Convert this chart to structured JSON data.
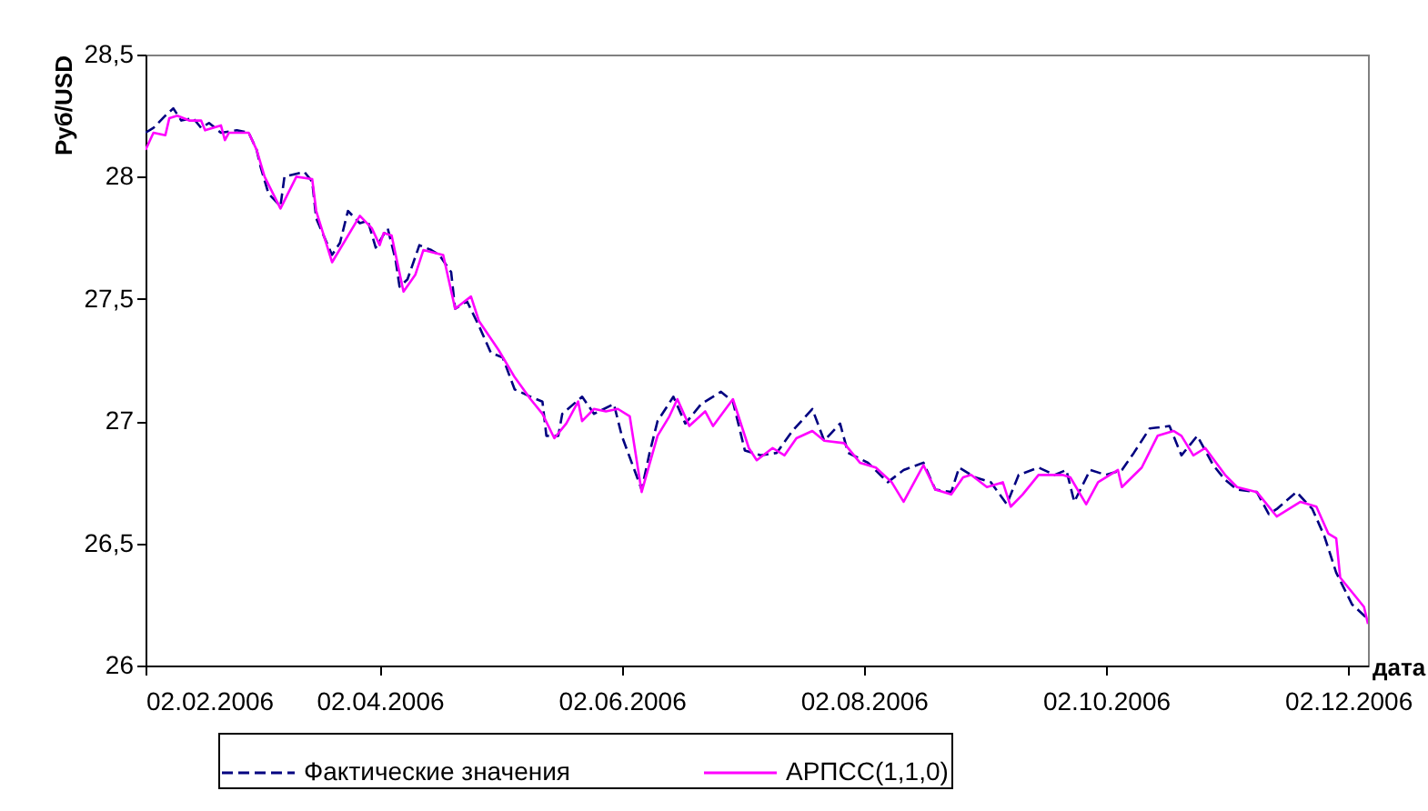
{
  "chart_data": {
    "type": "line",
    "ylabel": "Руб/USD",
    "xlabel": "дата",
    "xlim": [
      "2006-02-02",
      "2006-12-07"
    ],
    "xticks": [
      {
        "value": "2006-02-02",
        "label": "02.02.2006"
      },
      {
        "value": "2006-04-02",
        "label": "02.04.2006"
      },
      {
        "value": "2006-06-02",
        "label": "02.06.2006"
      },
      {
        "value": "2006-08-02",
        "label": "02.08.2006"
      },
      {
        "value": "2006-10-02",
        "label": "02.10.2006"
      },
      {
        "value": "2006-12-02",
        "label": "02.12.2006"
      }
    ],
    "ylim": [
      26,
      28.5
    ],
    "yticks": [
      26,
      {
        "value": 26.5,
        "label": "26,5"
      },
      27,
      {
        "value": 27.5,
        "label": "27,5"
      },
      28,
      {
        "value": 28.5,
        "label": "28,5"
      }
    ],
    "grid": false,
    "legend": "bottom",
    "series": [
      {
        "name": "Фактические значения",
        "color": "#000080",
        "line_style": "dashed",
        "x": [
          "2006-02-02",
          "2006-02-04",
          "2006-02-07",
          "2006-02-09",
          "2006-02-11",
          "2006-02-14",
          "2006-02-16",
          "2006-02-18",
          "2006-02-21",
          "2006-02-25",
          "2006-02-28",
          "2006-03-02",
          "2006-03-03",
          "2006-03-05",
          "2006-03-08",
          "2006-03-09",
          "2006-03-14",
          "2006-03-16",
          "2006-03-17",
          "2006-03-21",
          "2006-03-23",
          "2006-03-25",
          "2006-03-28",
          "2006-03-30",
          "2006-04-01",
          "2006-04-04",
          "2006-04-06",
          "2006-04-07",
          "2006-04-09",
          "2006-04-12",
          "2006-04-15",
          "2006-04-17",
          "2006-04-20",
          "2006-04-21",
          "2006-04-24",
          "2006-04-27",
          "2006-04-30",
          "2006-05-03",
          "2006-05-06",
          "2006-05-10",
          "2006-05-13",
          "2006-05-14",
          "2006-05-17",
          "2006-05-18",
          "2006-05-23",
          "2006-05-26",
          "2006-05-31",
          "2006-06-02",
          "2006-06-07",
          "2006-06-09",
          "2006-06-11",
          "2006-06-15",
          "2006-06-18",
          "2006-06-22",
          "2006-06-27",
          "2006-06-30",
          "2006-07-03",
          "2006-07-07",
          "2006-07-11",
          "2006-07-15",
          "2006-07-20",
          "2006-07-23",
          "2006-07-27",
          "2006-07-29",
          "2006-08-03",
          "2006-08-08",
          "2006-08-12",
          "2006-08-17",
          "2006-08-20",
          "2006-08-24",
          "2006-08-26",
          "2006-08-30",
          "2006-09-03",
          "2006-09-07",
          "2006-09-10",
          "2006-09-15",
          "2006-09-19",
          "2006-09-22",
          "2006-09-24",
          "2006-09-28",
          "2006-10-02",
          "2006-10-06",
          "2006-10-09",
          "2006-10-13",
          "2006-10-18",
          "2006-10-21",
          "2006-10-25",
          "2006-10-29",
          "2006-11-01",
          "2006-11-04",
          "2006-11-09",
          "2006-11-12",
          "2006-11-14",
          "2006-11-19",
          "2006-11-23",
          "2006-11-26",
          "2006-11-29",
          "2006-12-03",
          "2006-12-07"
        ],
        "values": [
          28.18,
          28.2,
          28.25,
          28.28,
          28.23,
          28.24,
          28.2,
          28.22,
          28.18,
          28.19,
          28.18,
          28.11,
          28.04,
          27.93,
          27.88,
          28.0,
          28.02,
          27.98,
          27.83,
          27.68,
          27.73,
          27.86,
          27.81,
          27.82,
          27.71,
          27.79,
          27.66,
          27.55,
          27.58,
          27.72,
          27.7,
          27.68,
          27.61,
          27.46,
          27.49,
          27.39,
          27.28,
          27.26,
          27.13,
          27.1,
          27.08,
          26.94,
          26.94,
          27.03,
          27.1,
          27.03,
          27.07,
          26.94,
          26.72,
          26.87,
          27.0,
          27.1,
          26.99,
          27.07,
          27.12,
          27.08,
          26.88,
          26.86,
          26.87,
          26.96,
          27.05,
          26.92,
          26.99,
          26.87,
          26.83,
          26.75,
          26.8,
          26.83,
          26.72,
          26.71,
          26.81,
          26.77,
          26.75,
          26.66,
          26.78,
          26.81,
          26.78,
          26.8,
          26.67,
          26.8,
          26.78,
          26.8,
          26.87,
          26.97,
          26.98,
          26.86,
          26.94,
          26.82,
          26.76,
          26.72,
          26.71,
          26.62,
          26.64,
          26.71,
          26.64,
          26.53,
          26.38,
          26.25,
          26.19
        ]
      },
      {
        "name": "АРПСС(1,1,0)",
        "color": "#ff00ff",
        "line_style": "solid",
        "x": [
          "2006-02-02",
          "2006-02-04",
          "2006-02-07",
          "2006-02-08",
          "2006-02-10",
          "2006-02-13",
          "2006-02-16",
          "2006-02-17",
          "2006-02-21",
          "2006-02-22",
          "2006-02-23",
          "2006-02-28",
          "2006-03-02",
          "2006-03-04",
          "2006-03-08",
          "2006-03-12",
          "2006-03-16",
          "2006-03-17",
          "2006-03-21",
          "2006-03-28",
          "2006-03-31",
          "2006-04-02",
          "2006-04-03",
          "2006-04-05",
          "2006-04-08",
          "2006-04-11",
          "2006-04-13",
          "2006-04-18",
          "2006-04-21",
          "2006-04-25",
          "2006-04-27",
          "2006-05-02",
          "2006-05-06",
          "2006-05-10",
          "2006-05-13",
          "2006-05-16",
          "2006-05-19",
          "2006-05-20",
          "2006-05-22",
          "2006-05-23",
          "2006-05-26",
          "2006-05-29",
          "2006-06-01",
          "2006-06-04",
          "2006-06-07",
          "2006-06-11",
          "2006-06-14",
          "2006-06-16",
          "2006-06-19",
          "2006-06-23",
          "2006-06-25",
          "2006-06-30",
          "2006-07-04",
          "2006-07-06",
          "2006-07-10",
          "2006-07-13",
          "2006-07-16",
          "2006-07-20",
          "2006-07-23",
          "2006-07-28",
          "2006-08-01",
          "2006-08-05",
          "2006-08-09",
          "2006-08-12",
          "2006-08-17",
          "2006-08-20",
          "2006-08-24",
          "2006-08-27",
          "2006-08-29",
          "2006-09-02",
          "2006-09-06",
          "2006-09-08",
          "2006-09-11",
          "2006-09-15",
          "2006-09-21",
          "2006-09-23",
          "2006-09-27",
          "2006-09-30",
          "2006-10-05",
          "2006-10-06",
          "2006-10-11",
          "2006-10-15",
          "2006-10-19",
          "2006-10-21",
          "2006-10-24",
          "2006-10-27",
          "2006-11-01",
          "2006-11-04",
          "2006-11-09",
          "2006-11-14",
          "2006-11-20",
          "2006-11-24",
          "2006-11-27",
          "2006-11-29",
          "2006-11-30",
          "2006-12-06",
          "2006-12-07"
        ],
        "values": [
          28.11,
          28.18,
          28.17,
          28.24,
          28.25,
          28.23,
          28.23,
          28.19,
          28.21,
          28.15,
          28.18,
          28.18,
          28.11,
          28.0,
          27.87,
          28.0,
          27.99,
          27.86,
          27.65,
          27.84,
          27.79,
          27.72,
          27.77,
          27.76,
          27.53,
          27.6,
          27.7,
          27.68,
          27.46,
          27.51,
          27.41,
          27.29,
          27.18,
          27.09,
          27.03,
          26.93,
          26.99,
          27.02,
          27.08,
          27.0,
          27.05,
          27.04,
          27.05,
          27.02,
          26.71,
          26.94,
          27.02,
          27.09,
          26.98,
          27.04,
          26.98,
          27.09,
          26.89,
          26.84,
          26.89,
          26.86,
          26.93,
          26.96,
          26.92,
          26.91,
          26.83,
          26.81,
          26.75,
          26.67,
          26.82,
          26.72,
          26.7,
          26.77,
          26.78,
          26.73,
          26.75,
          26.65,
          26.7,
          26.78,
          26.78,
          26.77,
          26.66,
          26.75,
          26.8,
          26.73,
          26.81,
          26.94,
          26.96,
          26.94,
          26.86,
          26.89,
          26.78,
          26.73,
          26.71,
          26.61,
          26.67,
          26.65,
          26.54,
          26.52,
          26.36,
          26.24,
          26.17
        ]
      }
    ]
  }
}
